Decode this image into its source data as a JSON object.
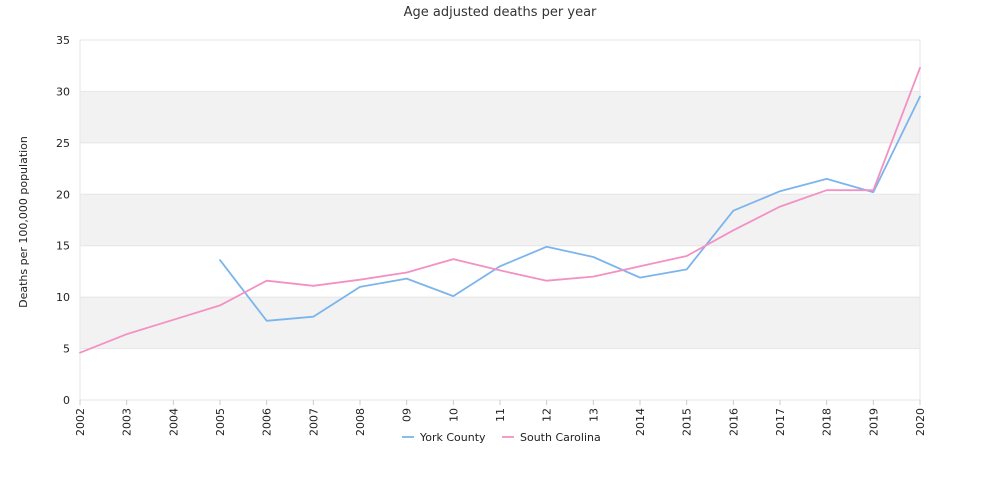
{
  "chart_data": {
    "type": "line",
    "title": "Age adjusted deaths per year",
    "xlabel": "",
    "ylabel": "Deaths per 100,000 population",
    "x": [
      "2002",
      "2003",
      "2004",
      "2005",
      "2006",
      "2007",
      "2008",
      "09",
      "10",
      "11",
      "12",
      "13",
      "2014",
      "2015",
      "2016",
      "2017",
      "2018",
      "2019",
      "2020"
    ],
    "ylim": [
      0,
      35
    ],
    "yticks": [
      0,
      5,
      10,
      15,
      20,
      25,
      30,
      35
    ],
    "grid": "horizontal bands",
    "legend_position": "bottom",
    "series": [
      {
        "name": "York County",
        "color": "#7cb5ec",
        "values": [
          null,
          null,
          null,
          13.6,
          7.7,
          8.1,
          11.0,
          11.8,
          10.1,
          13.0,
          14.9,
          13.9,
          11.9,
          12.7,
          18.4,
          20.3,
          21.5,
          20.2,
          29.5
        ]
      },
      {
        "name": "South Carolina",
        "color": "#f391c3",
        "values": [
          4.6,
          6.4,
          7.8,
          9.2,
          11.6,
          11.1,
          11.7,
          12.4,
          13.7,
          12.6,
          11.6,
          12.0,
          13.0,
          14.0,
          16.5,
          18.8,
          20.4,
          20.4,
          32.3
        ]
      }
    ]
  }
}
